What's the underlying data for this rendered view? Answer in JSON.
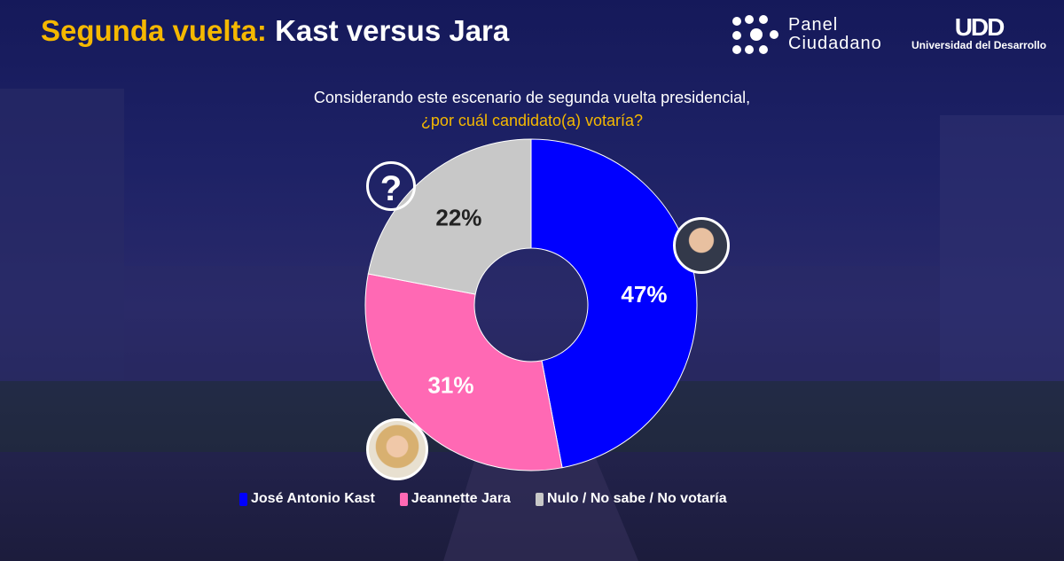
{
  "header": {
    "title_highlight": "Segunda vuelta:",
    "title_rest": "Kast versus Jara"
  },
  "logos": {
    "panel_line1": "Panel",
    "panel_line2": "Ciudadano",
    "udd_mark": "UDD",
    "udd_name": "Universidad del Desarrollo"
  },
  "question": {
    "line1": "Considerando este escenario de segunda vuelta presidencial,",
    "line2": "¿por cuál candidato(a) votaría?"
  },
  "icons": {
    "unknown": "?"
  },
  "chart_data": {
    "type": "pie",
    "variant": "donut",
    "start": "top",
    "direction": "clockwise",
    "categories": [
      "José Antonio Kast",
      "Jeannette Jara",
      "Nulo / No sabe / No votaría"
    ],
    "values": [
      47,
      31,
      22
    ],
    "labels": [
      "47%",
      "31%",
      "22%"
    ],
    "colors": [
      "#0000ff",
      "#ff69b4",
      "#c8c8c8"
    ],
    "label_colors": [
      "#ffffff",
      "#ffffff",
      "#222222"
    ],
    "legend_position": "bottom"
  }
}
